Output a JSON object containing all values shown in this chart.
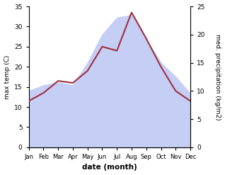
{
  "months": [
    "Jan",
    "Feb",
    "Mar",
    "Apr",
    "May",
    "Jun",
    "Jul",
    "Aug",
    "Sep",
    "Oct",
    "Nov",
    "Dec"
  ],
  "temp": [
    11.5,
    13.5,
    16.5,
    16.0,
    19.0,
    25.0,
    24.0,
    33.5,
    27.0,
    20.0,
    14.0,
    11.5
  ],
  "precip": [
    10.0,
    11.0,
    11.5,
    11.0,
    15.0,
    20.0,
    23.0,
    23.5,
    19.0,
    15.0,
    12.5,
    9.5
  ],
  "temp_color": "#a03040",
  "precip_fill_color": "#c5cef5",
  "temp_ylim": [
    0,
    35
  ],
  "precip_ylim": [
    0,
    25
  ],
  "temp_yticks": [
    0,
    5,
    10,
    15,
    20,
    25,
    30,
    35
  ],
  "precip_yticks": [
    0,
    5,
    10,
    15,
    20,
    25
  ],
  "xlabel": "date (month)",
  "ylabel_left": "max temp (C)",
  "ylabel_right": "med. precipitation (kg/m2)",
  "bg_color": "#ffffff"
}
